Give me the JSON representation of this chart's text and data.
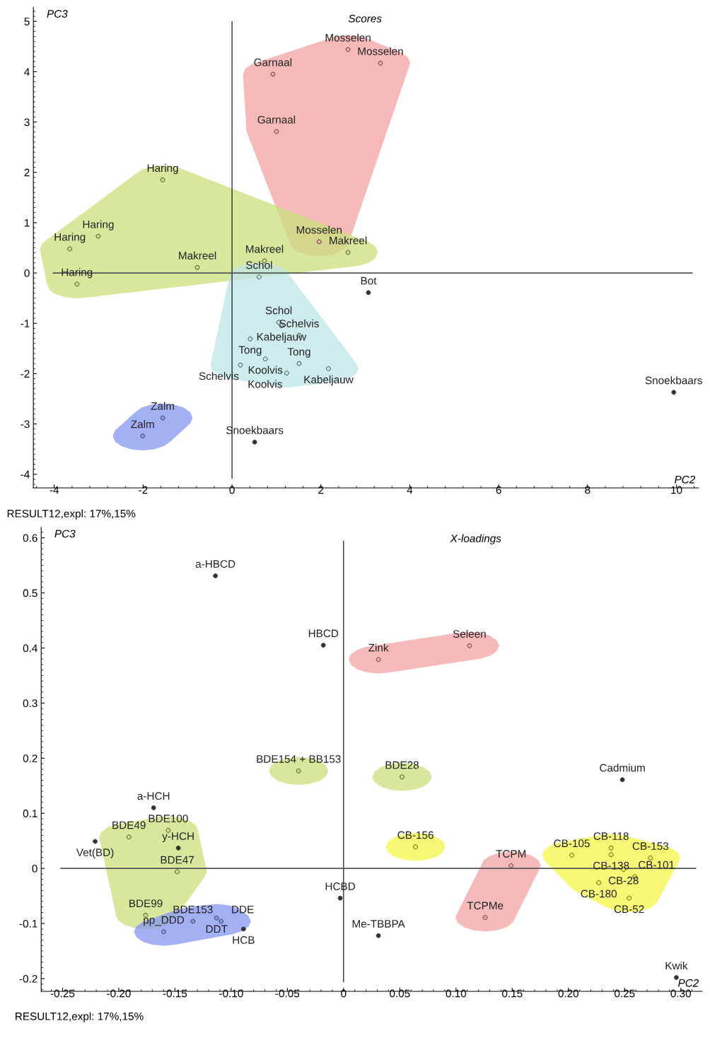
{
  "chart_data": [
    {
      "type": "scatter",
      "title": "Scores",
      "xlabel": "PC2",
      "ylabel": "PC3",
      "marker": "circle",
      "grid": false,
      "xlim": [
        -4.47,
        10.5
      ],
      "ylim": [
        -4.27,
        5.28
      ],
      "xticks": [
        -4,
        -2,
        0,
        2,
        4,
        6,
        8,
        10
      ],
      "yticks": [
        -4,
        -3,
        -2,
        -1,
        0,
        1,
        2,
        3,
        4,
        5
      ],
      "ref_lines": [
        {
          "axis": "x",
          "value": 0,
          "label": null
        },
        {
          "axis": "y",
          "value": 0,
          "label": null
        }
      ],
      "annotations": [
        "RESULT12,expl: 17%,15%"
      ],
      "series": [
        {
          "color": "#f4a3a3",
          "x": [
            2.61,
            3.34,
            0.92,
            1.0,
            1.96
          ],
          "values": [
            4.44,
            4.17,
            3.95,
            2.81,
            0.62
          ],
          "value_labels": [
            "Mosselen",
            "Mosselen",
            "Garnaal",
            "Garnaal",
            "Mosselen"
          ]
        },
        {
          "color": "#c9e07c",
          "x": [
            2.61,
            -1.56,
            -3.01,
            -3.65,
            -0.78,
            0.73,
            -3.49
          ],
          "values": [
            0.41,
            1.85,
            0.73,
            0.48,
            0.11,
            0.24,
            -0.22
          ],
          "value_labels": [
            "Makreel",
            "Haring",
            "Haring",
            "Haring",
            "Makreel",
            "Makreel",
            "Haring"
          ]
        },
        {
          "color": "#bfe6e6",
          "x": [
            0.61,
            1.05,
            1.11,
            0.41,
            1.51,
            0.75,
            0.19,
            1.51,
            2.17,
            1.23
          ],
          "values": [
            -0.08,
            -0.98,
            -1.05,
            -1.31,
            -1.24,
            -1.71,
            -1.83,
            -1.8,
            -1.9,
            -1.99
          ],
          "value_labels": [
            "Schol",
            "Schol",
            "Kabeljauw",
            "Tong",
            "Schelvis",
            "Koolvis",
            "Schelvis",
            "Tong",
            "Kabeljauw",
            "Koolvis"
          ]
        },
        {
          "color": "#8595f0",
          "x": [
            -1.56,
            -2.01
          ],
          "values": [
            -2.88,
            -3.24
          ],
          "value_labels": [
            "Zalm",
            "Zalm"
          ]
        },
        {
          "x": [
            3.07,
            0.51,
            9.94
          ],
          "values": [
            -0.39,
            -3.36,
            -2.37
          ],
          "value_labels": [
            "Bot",
            "Snoekbaars",
            "Snoekbaars"
          ]
        }
      ]
    },
    {
      "type": "scatter",
      "title": "X-loadings",
      "xlabel": "PC2",
      "ylabel": "PC3",
      "marker": "circle",
      "grid": false,
      "xlim": [
        -0.269,
        0.319
      ],
      "ylim": [
        -0.223,
        0.619
      ],
      "xticks": [
        -0.25,
        {
          "value": -0.2,
          "label": "-0.20"
        },
        -0.15,
        {
          "value": -0.1,
          "label": "-0.10"
        },
        -0.05,
        0,
        0.05,
        {
          "value": 0.1,
          "label": "0.10"
        },
        0.15,
        {
          "value": 0.2,
          "label": "0.20"
        },
        0.25,
        {
          "value": 0.3,
          "label": "0.30"
        }
      ],
      "yticks": [
        {
          "value": -0.2,
          "label": "-0.2"
        },
        {
          "value": -0.1,
          "label": "-0.1"
        },
        0,
        0.1,
        0.2,
        0.3,
        0.4,
        0.5,
        0.6
      ],
      "ref_lines": [
        {
          "axis": "x",
          "value": 0,
          "label": null
        },
        {
          "axis": "y",
          "value": 0,
          "label": null
        }
      ],
      "annotations": [
        "RESULT12,expl: 17%,15%"
      ],
      "series": [
        {
          "color": "#f4a3a3",
          "x": [
            0.112,
            0.031
          ],
          "values": [
            0.404,
            0.379
          ],
          "value_labels": [
            "Seleen",
            "Zink"
          ]
        },
        {
          "color": "#c9e07c",
          "x": [
            -0.04
          ],
          "values": [
            0.177
          ],
          "value_labels": [
            "BDE154 + BB153"
          ]
        },
        {
          "color": "#c9e07c",
          "x": [
            0.052
          ],
          "values": [
            0.166
          ],
          "value_labels": [
            "BDE28"
          ]
        },
        {
          "color": "#c9e07c",
          "x": [
            -0.191,
            -0.156,
            -0.148,
            -0.176
          ],
          "values": [
            0.057,
            0.069,
            -0.006,
            -0.085
          ],
          "value_labels": [
            "BDE49",
            "BDE100",
            "BDE47",
            "BDE99"
          ]
        },
        {
          "color": "#f5f545",
          "x": [
            0.064
          ],
          "values": [
            0.039
          ],
          "value_labels": [
            "CB-156"
          ]
        },
        {
          "color": "#f5f545",
          "x": [
            0.238,
            0.238,
            0.203,
            0.273,
            0.249,
            0.259,
            0.227,
            0.254
          ],
          "values": [
            0.037,
            0.025,
            0.024,
            0.019,
            -0.002,
            -0.015,
            -0.026,
            -0.054
          ],
          "value_labels": [
            "CB-118",
            "CB-138",
            "CB-105",
            "CB-153",
            "CB-28",
            "CB-101",
            "CB-180",
            "CB-52"
          ]
        },
        {
          "color": "#f4a3a3",
          "x": [
            0.149,
            0.126
          ],
          "values": [
            0.005,
            -0.089
          ],
          "value_labels": [
            "TCPM",
            "TCPMe"
          ]
        },
        {
          "color": "#8595f0",
          "x": [
            -0.16,
            -0.134,
            -0.113,
            -0.109
          ],
          "values": [
            -0.115,
            -0.096,
            -0.09,
            -0.096
          ],
          "value_labels": [
            "pp_DDD",
            "BDE153",
            "DDT",
            "DDE"
          ]
        },
        {
          "x": [
            -0.114,
            -0.018,
            0.248,
            -0.169,
            -0.221,
            -0.147,
            -0.003,
            0.031,
            -0.089,
            0.296
          ],
          "values": [
            0.531,
            0.405,
            0.161,
            0.11,
            0.049,
            0.037,
            -0.054,
            -0.122,
            -0.11,
            -0.198
          ],
          "value_labels": [
            "a-HBCD",
            "HBCD",
            "Cadmium",
            "a-HCH",
            "Vet(BD)",
            "y-HCH",
            "HCBD",
            "Me-TBBPA",
            "HCB",
            "Kwik"
          ]
        }
      ]
    }
  ]
}
